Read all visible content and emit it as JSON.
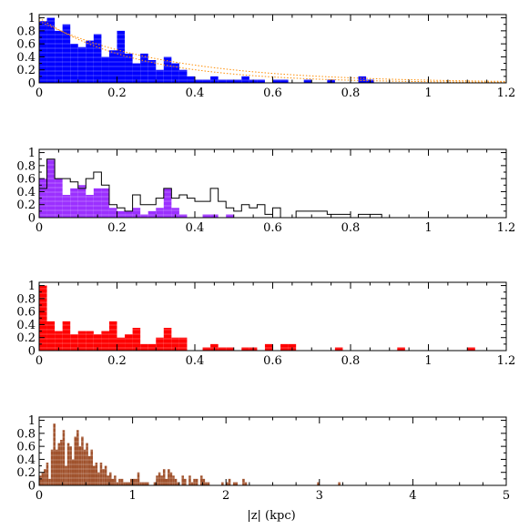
{
  "figure": {
    "xlabel": "|z| (kpc)"
  },
  "chart_data": [
    {
      "type": "bar",
      "title": "",
      "xlim": [
        0,
        1.2
      ],
      "ylim": [
        0,
        1.05
      ],
      "xticks": [
        0,
        0.2,
        0.4,
        0.6,
        0.8,
        1,
        1.2
      ],
      "xtick_labels": [
        "0",
        "0.2",
        "0.4",
        "0.6",
        "0.8",
        "1",
        "1.2"
      ],
      "yticks": [
        0,
        0.2,
        0.4,
        0.6,
        0.8,
        1
      ],
      "ytick_labels": [
        "0",
        "0.2",
        "0.4",
        "0.6",
        "0.8",
        "1"
      ],
      "bin_width": 0.02,
      "fill_color": "#0000ff",
      "x_start": 0.0,
      "values": [
        0.95,
        1.0,
        0.8,
        0.9,
        0.6,
        0.55,
        0.65,
        0.75,
        0.4,
        0.5,
        0.8,
        0.45,
        0.3,
        0.45,
        0.35,
        0.2,
        0.4,
        0.3,
        0.2,
        0.1,
        0.05,
        0.05,
        0.1,
        0.05,
        0.05,
        0.05,
        0.1,
        0.05,
        0.05,
        0.0,
        0.05,
        0.05,
        0.0,
        0.0,
        0.05,
        0.0,
        0.0,
        0.05,
        0.0,
        0.0,
        0.0,
        0.1,
        0.05,
        0.0,
        0.0,
        0.0,
        0.0,
        0.0
      ],
      "overlay_curves": [
        {
          "type": "exponential",
          "amplitude": 1.0,
          "scale": 0.25,
          "color": "#ff8c00",
          "style": "dotted"
        },
        {
          "type": "exponential",
          "amplitude": 0.95,
          "scale": 0.32,
          "color": "#ff8c00",
          "style": "dotted"
        }
      ]
    },
    {
      "type": "bar",
      "title": "",
      "xlim": [
        0,
        1.2
      ],
      "ylim": [
        0,
        1.05
      ],
      "xticks": [
        0,
        0.2,
        0.4,
        0.6,
        0.8,
        1,
        1.2
      ],
      "xtick_labels": [
        "0",
        "0.2",
        "0.4",
        "0.6",
        "0.8",
        "1",
        "1.2"
      ],
      "yticks": [
        0,
        0.2,
        0.4,
        0.6,
        0.8,
        1
      ],
      "ytick_labels": [
        "0",
        "0.2",
        "0.4",
        "0.6",
        "0.8",
        "1"
      ],
      "bin_width": 0.02,
      "fill_color": "#9b30ff",
      "x_start": 0.0,
      "values": [
        0.6,
        0.9,
        0.6,
        0.35,
        0.45,
        0.5,
        0.35,
        0.45,
        0.45,
        0.15,
        0.1,
        0.1,
        0.15,
        0.05,
        0.1,
        0.15,
        0.45,
        0.15,
        0.05,
        0.0,
        0.0,
        0.05,
        0.05,
        0.0,
        0.05,
        0.0,
        0.0,
        0.0
      ],
      "outline_values": [
        0.45,
        0.9,
        0.6,
        0.6,
        0.55,
        0.45,
        0.6,
        0.7,
        0.5,
        0.2,
        0.15,
        0.1,
        0.35,
        0.2,
        0.2,
        0.3,
        0.45,
        0.3,
        0.35,
        0.3,
        0.25,
        0.25,
        0.45,
        0.25,
        0.15,
        0.1,
        0.2,
        0.15,
        0.2,
        0.05,
        0.15,
        0.0,
        0.0,
        0.1,
        0.1,
        0.1,
        0.1,
        0.05,
        0.05,
        0.05,
        0.0,
        0.05,
        0.05,
        0.05,
        0.0,
        0.0,
        0.0,
        0.0,
        0.0,
        0.0,
        0.0,
        0.0,
        0.0,
        0.0,
        0.0,
        0.0,
        0.0,
        0.0,
        0.0,
        0.0,
        0.0,
        0.0,
        0.0,
        0.0,
        0.0,
        0.0,
        0.0,
        0.0,
        0.0,
        0.0,
        0.0,
        0.0,
        0.0,
        0.0,
        0.0,
        0.0,
        0.0,
        0.0,
        0.0,
        0.0,
        0.0,
        0.0,
        0.0,
        0.0,
        0.0,
        0.0,
        0.0,
        0.0,
        0.0,
        0.0,
        0.0,
        0.0,
        0.0,
        0.0,
        0.0,
        0.0,
        0.0,
        0.0,
        0.0,
        0.0,
        0.0,
        0.0,
        0.0,
        0.0,
        0.0,
        0.0,
        0.0,
        0.0,
        0.0,
        0.0,
        0.0,
        0.0,
        0.0,
        0.0,
        0.0
      ],
      "outline_color": "#000000"
    },
    {
      "type": "bar",
      "title": "",
      "xlim": [
        0,
        1.2
      ],
      "ylim": [
        0,
        1.05
      ],
      "xticks": [
        0,
        0.2,
        0.4,
        0.6,
        0.8,
        1,
        1.2
      ],
      "xtick_labels": [
        "0",
        "0.2",
        "0.4",
        "0.6",
        "0.8",
        "1",
        "1.2"
      ],
      "yticks": [
        0,
        0.2,
        0.4,
        0.6,
        0.8,
        1
      ],
      "ytick_labels": [
        "0",
        "0.2",
        "0.4",
        "0.6",
        "0.8",
        "1"
      ],
      "bin_width": 0.02,
      "fill_color": "#ff0000",
      "x_start": 0.0,
      "values": [
        1.0,
        0.45,
        0.3,
        0.45,
        0.25,
        0.3,
        0.3,
        0.25,
        0.3,
        0.45,
        0.2,
        0.25,
        0.35,
        0.1,
        0.1,
        0.2,
        0.35,
        0.2,
        0.2,
        0.0,
        0.0,
        0.05,
        0.1,
        0.05,
        0.05,
        0.0,
        0.05,
        0.05,
        0.0,
        0.1,
        0.0,
        0.1,
        0.1,
        0.0,
        0.0,
        0.0,
        0.0,
        0.0,
        0.05,
        0.0,
        0.0,
        0.0,
        0.0,
        0.0,
        0.0,
        0.0,
        0.05,
        0.0,
        0.0,
        0.0,
        0.0,
        0.0,
        0.0,
        0.0,
        0.0,
        0.05,
        0.0,
        0.0,
        0.0,
        0.0,
        0.0
      ]
    },
    {
      "type": "bar",
      "title": "",
      "xlim": [
        0,
        5
      ],
      "ylim": [
        0,
        1.05
      ],
      "xticks": [
        0,
        1,
        2,
        3,
        4,
        5
      ],
      "xtick_labels": [
        "0",
        "1",
        "2",
        "3",
        "4",
        "5"
      ],
      "yticks": [
        0,
        0.2,
        0.4,
        0.6,
        0.8,
        1
      ],
      "ytick_labels": [
        "0",
        "0.2",
        "0.4",
        "0.6",
        "0.8",
        "1"
      ],
      "bin_width": 0.025,
      "fill_color": "#a0522d",
      "x_start": 0.0,
      "values": [
        0.15,
        0.2,
        0.25,
        0.35,
        0.1,
        0.55,
        0.95,
        0.55,
        0.65,
        0.7,
        0.85,
        0.3,
        0.65,
        0.6,
        0.4,
        0.75,
        0.85,
        0.6,
        0.75,
        0.55,
        0.65,
        0.45,
        0.55,
        0.3,
        0.35,
        0.2,
        0.35,
        0.25,
        0.3,
        0.15,
        0.2,
        0.1,
        0.15,
        0.05,
        0.1,
        0.1,
        0.05,
        0.05,
        0.05,
        0.1,
        0.1,
        0.1,
        0.2,
        0.05,
        0.05,
        0.05,
        0.05,
        0.0,
        0.0,
        0.05,
        0.15,
        0.2,
        0.15,
        0.25,
        0.1,
        0.25,
        0.2,
        0.15,
        0.1,
        0.05,
        0.0,
        0.15,
        0.1,
        0.0,
        0.15,
        0.05,
        0.1,
        0.1,
        0.0,
        0.15,
        0.1,
        0.05,
        0.05,
        0.0,
        0.0,
        0.0,
        0.0,
        0.0,
        0.05,
        0.0,
        0.05,
        0.1,
        0.0,
        0.05,
        0.05,
        0.0,
        0.0,
        0.1,
        0.05,
        0.0,
        0.0,
        0.0,
        0.0,
        0.0,
        0.0,
        0.0,
        0.0,
        0.0,
        0.0,
        0.0,
        0.0,
        0.0,
        0.0,
        0.0,
        0.0,
        0.0,
        0.0,
        0.0,
        0.0,
        0.0,
        0.0,
        0.0,
        0.0,
        0.0,
        0.0,
        0.0,
        0.0,
        0.0,
        0.0,
        0.05,
        0.0,
        0.0,
        0.0,
        0.0,
        0.0,
        0.0,
        0.0,
        0.0,
        0.05,
        0.0,
        0.0,
        0.0,
        0.0,
        0.0,
        0.0,
        0.0,
        0.0,
        0.0,
        0.0,
        0.0,
        0.0,
        0.0,
        0.0,
        0.0,
        0.0,
        0.0,
        0.0,
        0.0,
        0.0,
        0.0,
        0.0,
        0.0,
        0.0,
        0.0,
        0.0,
        0.0,
        0.0,
        0.0,
        0.0,
        0.0,
        0.0,
        0.0,
        0.0,
        0.0,
        0.0,
        0.0,
        0.0,
        0.0,
        0.0,
        0.0,
        0.0,
        0.0,
        0.0,
        0.0,
        0.0,
        0.0,
        0.0,
        0.0,
        0.0,
        0.0,
        0.0,
        0.0,
        0.0,
        0.0,
        0.0,
        0.0,
        0.0,
        0.0,
        0.0,
        0.0,
        0.0,
        0.0,
        0.0,
        0.0
      ]
    }
  ]
}
